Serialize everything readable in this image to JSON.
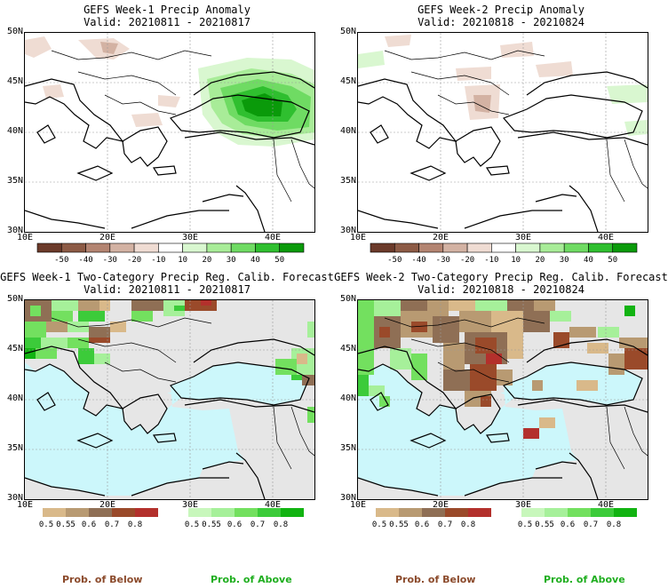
{
  "panels": {
    "p1": {
      "title": "GEFS Week-1 Precip Anomaly",
      "valid": "Valid: 20210811 - 20210817"
    },
    "p2": {
      "title": "GEFS Week-2 Precip Anomaly",
      "valid": "Valid: 20210818 - 20210824"
    },
    "p3": {
      "title": "GEFS Week-1 Two-Category Precip Reg. Calib. Forecast",
      "valid": "Valid: 20210811 - 20210817"
    },
    "p4": {
      "title": "GEFS Week-2 Two-Category Precip Reg. Calib. Forecast",
      "valid": "Valid: 20210818 - 20210824"
    }
  },
  "axes": {
    "lat_labels": [
      "50N",
      "45N",
      "40N",
      "35N",
      "30N"
    ],
    "lon_labels": [
      "10E",
      "20E",
      "30E",
      "40E"
    ]
  },
  "anomaly_colorbar": {
    "labels": [
      "-50",
      "-40",
      "-30",
      "-20",
      "-10",
      "10",
      "20",
      "30",
      "40",
      "50"
    ],
    "colors": [
      "#6b3a2a",
      "#8c5a45",
      "#b38471",
      "#d3b2a3",
      "#efdcd3",
      "#ffffff",
      "#d9f7d0",
      "#a8ec98",
      "#6fdb63",
      "#2fbf2f",
      "#0a9a0a"
    ]
  },
  "prob_colorbars": {
    "below": {
      "labels": [
        "0.5",
        "0.55",
        "0.6",
        "0.7",
        "0.8"
      ],
      "colors": [
        "#d9b98a",
        "#b89a72",
        "#8f6f55",
        "#9a4a2a",
        "#b3302c"
      ]
    },
    "above": {
      "labels": [
        "0.5",
        "0.55",
        "0.6",
        "0.7",
        "0.8"
      ],
      "colors": [
        "#c8f7bc",
        "#a6f09a",
        "#73e05f",
        "#3ccb3a",
        "#12b312"
      ]
    }
  },
  "legend": {
    "below": "Prob. of Below",
    "above": "Prob. of Above"
  },
  "colors": {
    "sea_cat": "#ccf7fb",
    "land_nodata": "#e6e6e6",
    "grid": "#999999"
  }
}
